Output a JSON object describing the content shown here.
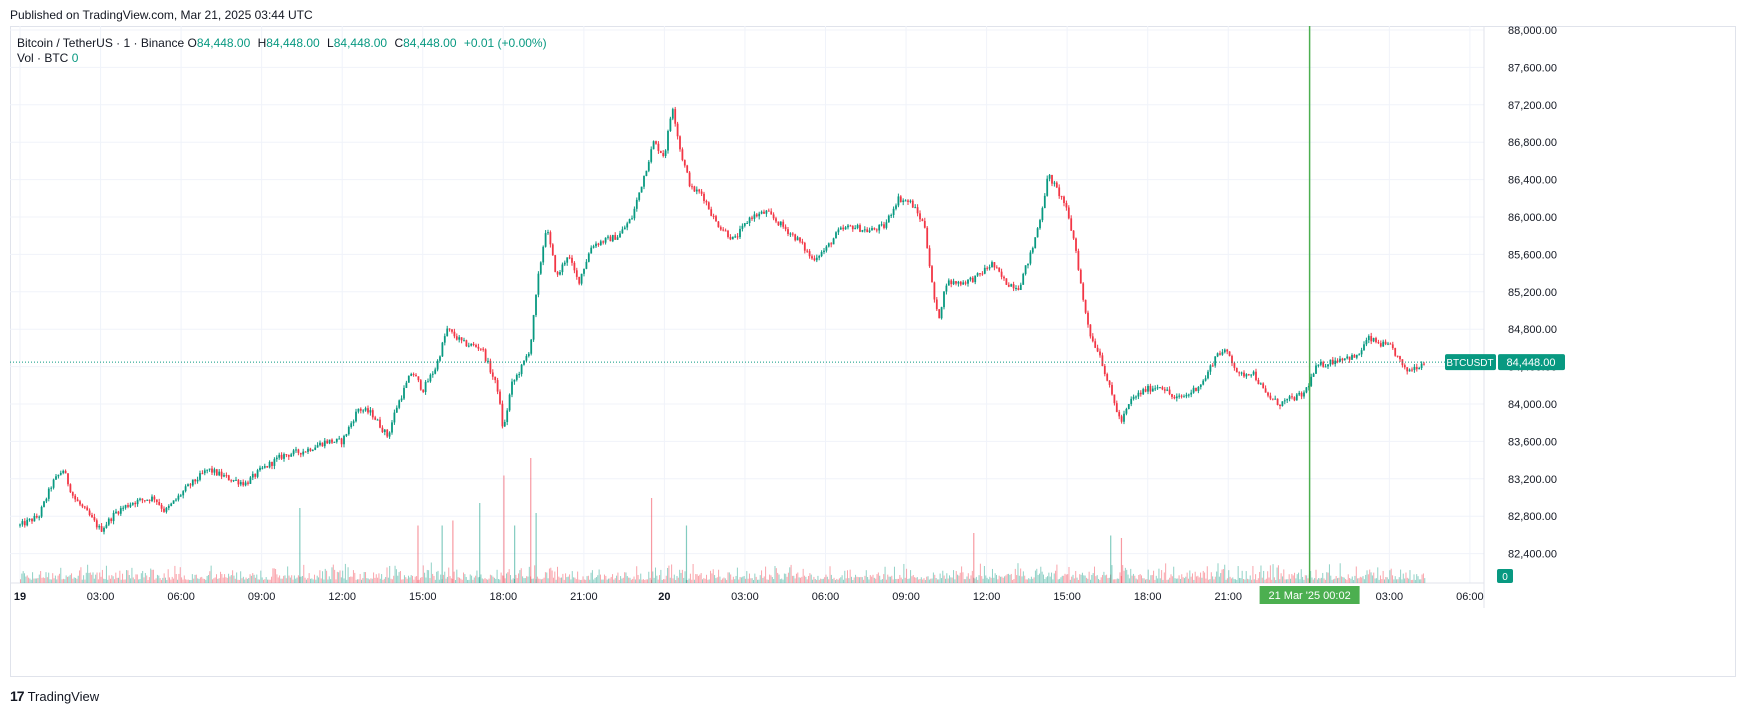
{
  "header": {
    "published": "Published on TradingView.com, Mar 21, 2025 03:44 UTC"
  },
  "legend": {
    "symbol": "Bitcoin / TetherUS · 1 · Binance",
    "o_label": "O",
    "o_value": "84,448.00",
    "h_label": "H",
    "h_value": "84,448.00",
    "l_label": "L",
    "l_value": "84,448.00",
    "c_label": "C",
    "c_value": "84,448.00",
    "change": "+0.01 (+0.00%)",
    "vol_label": "Vol · BTC",
    "vol_value": "0"
  },
  "footer": {
    "brand_logo": "17",
    "brand": "TradingView"
  },
  "colors": {
    "up": "#089981",
    "down": "#f23645",
    "cursor": "#4caf50",
    "grid": "#f0f3fa"
  },
  "chart_data": {
    "type": "candlestick",
    "symbol": "BTCUSDT",
    "timeframe": "1",
    "last_price": 84448.0,
    "last_price_label": "84,448.00",
    "symbol_tag": "BTCUSDT",
    "volume_last_label": "0",
    "ylim": [
      82200,
      88200
    ],
    "y_ticks": [
      82400,
      82800,
      83200,
      83600,
      84000,
      84400,
      84800,
      85200,
      85600,
      86000,
      86400,
      86800,
      87200,
      87600,
      88000
    ],
    "y_tick_labels": [
      "82,400.00",
      "82,800.00",
      "83,200.00",
      "83,600.00",
      "84,000.00",
      "84,400.00",
      "84,800.00",
      "85,200.00",
      "85,600.00",
      "86,000.00",
      "86,400.00",
      "86,800.00",
      "87,200.00",
      "87,600.00",
      "88,000.00"
    ],
    "x_range_hours": [
      0,
      54
    ],
    "x_ticks": [
      {
        "h": 0,
        "label": "19",
        "bold": true
      },
      {
        "h": 3,
        "label": "03:00"
      },
      {
        "h": 6,
        "label": "06:00"
      },
      {
        "h": 9,
        "label": "09:00"
      },
      {
        "h": 12,
        "label": "12:00"
      },
      {
        "h": 15,
        "label": "15:00"
      },
      {
        "h": 18,
        "label": "18:00"
      },
      {
        "h": 21,
        "label": "21:00"
      },
      {
        "h": 24,
        "label": "20",
        "bold": true
      },
      {
        "h": 27,
        "label": "03:00"
      },
      {
        "h": 30,
        "label": "06:00"
      },
      {
        "h": 33,
        "label": "09:00"
      },
      {
        "h": 36,
        "label": "12:00"
      },
      {
        "h": 39,
        "label": "15:00"
      },
      {
        "h": 42,
        "label": "18:00"
      },
      {
        "h": 45,
        "label": "21:00"
      },
      {
        "h": 51,
        "label": "03:00"
      },
      {
        "h": 54,
        "label": "06:00"
      }
    ],
    "cursor": {
      "h": 48.03,
      "label": "21 Mar '25   00:02"
    },
    "data_end_hour": 52.3,
    "price_path": [
      [
        0,
        82700
      ],
      [
        0.7,
        82800
      ],
      [
        1.2,
        83150
      ],
      [
        1.6,
        83300
      ],
      [
        2.0,
        83000
      ],
      [
        2.6,
        82800
      ],
      [
        3.0,
        82650
      ],
      [
        3.6,
        82850
      ],
      [
        4.2,
        82950
      ],
      [
        5.0,
        83000
      ],
      [
        5.4,
        82850
      ],
      [
        6.2,
        83100
      ],
      [
        7.0,
        83300
      ],
      [
        7.8,
        83200
      ],
      [
        8.4,
        83150
      ],
      [
        9.0,
        83300
      ],
      [
        9.8,
        83450
      ],
      [
        10.6,
        83500
      ],
      [
        11.4,
        83600
      ],
      [
        12.0,
        83600
      ],
      [
        12.6,
        83950
      ],
      [
        13.1,
        83900
      ],
      [
        13.7,
        83650
      ],
      [
        14.0,
        83950
      ],
      [
        14.6,
        84350
      ],
      [
        15.0,
        84150
      ],
      [
        15.5,
        84400
      ],
      [
        15.9,
        84800
      ],
      [
        16.5,
        84650
      ],
      [
        17.2,
        84600
      ],
      [
        17.8,
        84150
      ],
      [
        18.0,
        83700
      ],
      [
        18.3,
        84200
      ],
      [
        18.7,
        84400
      ],
      [
        19.0,
        84600
      ],
      [
        19.3,
        85350
      ],
      [
        19.6,
        85900
      ],
      [
        20.0,
        85350
      ],
      [
        20.4,
        85600
      ],
      [
        20.8,
        85300
      ],
      [
        21.3,
        85700
      ],
      [
        21.8,
        85750
      ],
      [
        22.3,
        85800
      ],
      [
        22.8,
        86000
      ],
      [
        23.2,
        86400
      ],
      [
        23.6,
        86800
      ],
      [
        24.0,
        86650
      ],
      [
        24.3,
        87200
      ],
      [
        24.6,
        86700
      ],
      [
        25.0,
        86300
      ],
      [
        25.4,
        86250
      ],
      [
        25.9,
        85950
      ],
      [
        26.6,
        85750
      ],
      [
        27.2,
        86000
      ],
      [
        27.8,
        86050
      ],
      [
        28.4,
        85900
      ],
      [
        29.0,
        85750
      ],
      [
        29.5,
        85550
      ],
      [
        30.0,
        85650
      ],
      [
        30.5,
        85850
      ],
      [
        31.0,
        85900
      ],
      [
        31.6,
        85850
      ],
      [
        32.2,
        85900
      ],
      [
        32.7,
        86200
      ],
      [
        33.2,
        86150
      ],
      [
        33.7,
        85900
      ],
      [
        34.0,
        85200
      ],
      [
        34.2,
        84900
      ],
      [
        34.5,
        85300
      ],
      [
        35.1,
        85300
      ],
      [
        35.6,
        85350
      ],
      [
        36.2,
        85500
      ],
      [
        36.7,
        85300
      ],
      [
        37.2,
        85250
      ],
      [
        37.7,
        85650
      ],
      [
        38.0,
        86000
      ],
      [
        38.3,
        86450
      ],
      [
        38.6,
        86300
      ],
      [
        38.9,
        86150
      ],
      [
        39.3,
        85700
      ],
      [
        39.6,
        85100
      ],
      [
        39.9,
        84700
      ],
      [
        40.2,
        84550
      ],
      [
        40.6,
        84150
      ],
      [
        41.0,
        83800
      ],
      [
        41.4,
        84050
      ],
      [
        41.9,
        84150
      ],
      [
        42.5,
        84200
      ],
      [
        43.0,
        84050
      ],
      [
        43.5,
        84100
      ],
      [
        44.1,
        84250
      ],
      [
        44.6,
        84550
      ],
      [
        45.0,
        84550
      ],
      [
        45.4,
        84300
      ],
      [
        45.9,
        84350
      ],
      [
        46.4,
        84100
      ],
      [
        46.9,
        84000
      ],
      [
        47.3,
        84050
      ],
      [
        47.8,
        84100
      ],
      [
        48.3,
        84400
      ],
      [
        48.8,
        84450
      ],
      [
        49.3,
        84500
      ],
      [
        49.8,
        84500
      ],
      [
        50.2,
        84700
      ],
      [
        50.6,
        84650
      ],
      [
        51.1,
        84600
      ],
      [
        51.6,
        84350
      ],
      [
        52.0,
        84400
      ],
      [
        52.3,
        84448
      ]
    ],
    "volume_spikes": [
      {
        "h": 10.4,
        "v": 300
      },
      {
        "h": 14.8,
        "v": 230
      },
      {
        "h": 15.7,
        "v": 230
      },
      {
        "h": 16.1,
        "v": 250
      },
      {
        "h": 17.1,
        "v": 320
      },
      {
        "h": 18.0,
        "v": 430
      },
      {
        "h": 18.4,
        "v": 230
      },
      {
        "h": 19.0,
        "v": 500
      },
      {
        "h": 19.2,
        "v": 280
      },
      {
        "h": 23.5,
        "v": 340
      },
      {
        "h": 24.8,
        "v": 230
      },
      {
        "h": 35.5,
        "v": 200
      },
      {
        "h": 40.6,
        "v": 190
      },
      {
        "h": 41.0,
        "v": 180
      }
    ]
  }
}
